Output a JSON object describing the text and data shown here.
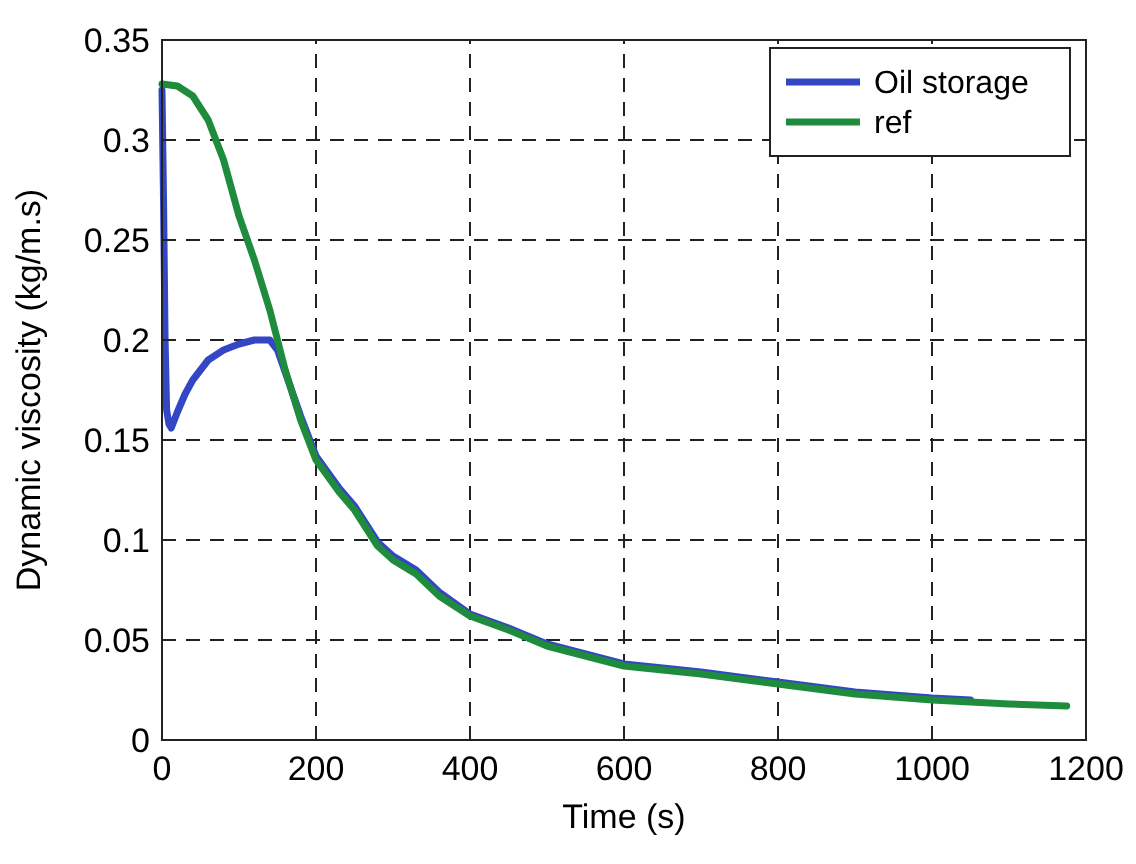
{
  "chart_data": {
    "type": "line",
    "xlabel": "Time (s)",
    "ylabel": "Dynamic viscosity (kg/m.s)",
    "xlim": [
      0,
      1200
    ],
    "ylim": [
      0,
      0.35
    ],
    "xticks": [
      0,
      200,
      400,
      600,
      800,
      1000,
      1200
    ],
    "yticks": [
      0,
      0.05,
      0.1,
      0.15,
      0.2,
      0.25,
      0.3,
      0.35
    ],
    "grid": true,
    "legend": "top right",
    "line_style": "solid",
    "marker": "none",
    "series": [
      {
        "name": "Oil storage",
        "color": "#3347c4",
        "x": [
          0,
          2,
          4,
          6,
          9,
          12,
          16,
          20,
          30,
          40,
          60,
          80,
          100,
          120,
          140,
          150,
          160,
          180,
          200,
          230,
          250,
          280,
          300,
          330,
          360,
          400,
          450,
          500,
          550,
          600,
          650,
          700,
          800,
          900,
          1000,
          1050
        ],
        "values": [
          0.325,
          0.27,
          0.2,
          0.165,
          0.158,
          0.156,
          0.16,
          0.164,
          0.173,
          0.18,
          0.19,
          0.195,
          0.198,
          0.2,
          0.2,
          0.195,
          0.184,
          0.162,
          0.142,
          0.126,
          0.117,
          0.099,
          0.092,
          0.085,
          0.074,
          0.063,
          0.056,
          0.048,
          0.043,
          0.038,
          0.036,
          0.034,
          0.029,
          0.024,
          0.021,
          0.02
        ]
      },
      {
        "name": "ref",
        "color": "#1e8c3c",
        "x": [
          0,
          20,
          40,
          60,
          80,
          100,
          120,
          140,
          160,
          180,
          200,
          230,
          250,
          280,
          300,
          330,
          360,
          400,
          450,
          500,
          550,
          600,
          650,
          700,
          800,
          900,
          1000,
          1100,
          1175
        ],
        "values": [
          0.328,
          0.327,
          0.322,
          0.31,
          0.29,
          0.262,
          0.24,
          0.215,
          0.185,
          0.16,
          0.14,
          0.124,
          0.115,
          0.097,
          0.09,
          0.083,
          0.072,
          0.062,
          0.055,
          0.047,
          0.042,
          0.037,
          0.035,
          0.033,
          0.028,
          0.023,
          0.02,
          0.018,
          0.017
        ]
      }
    ]
  }
}
